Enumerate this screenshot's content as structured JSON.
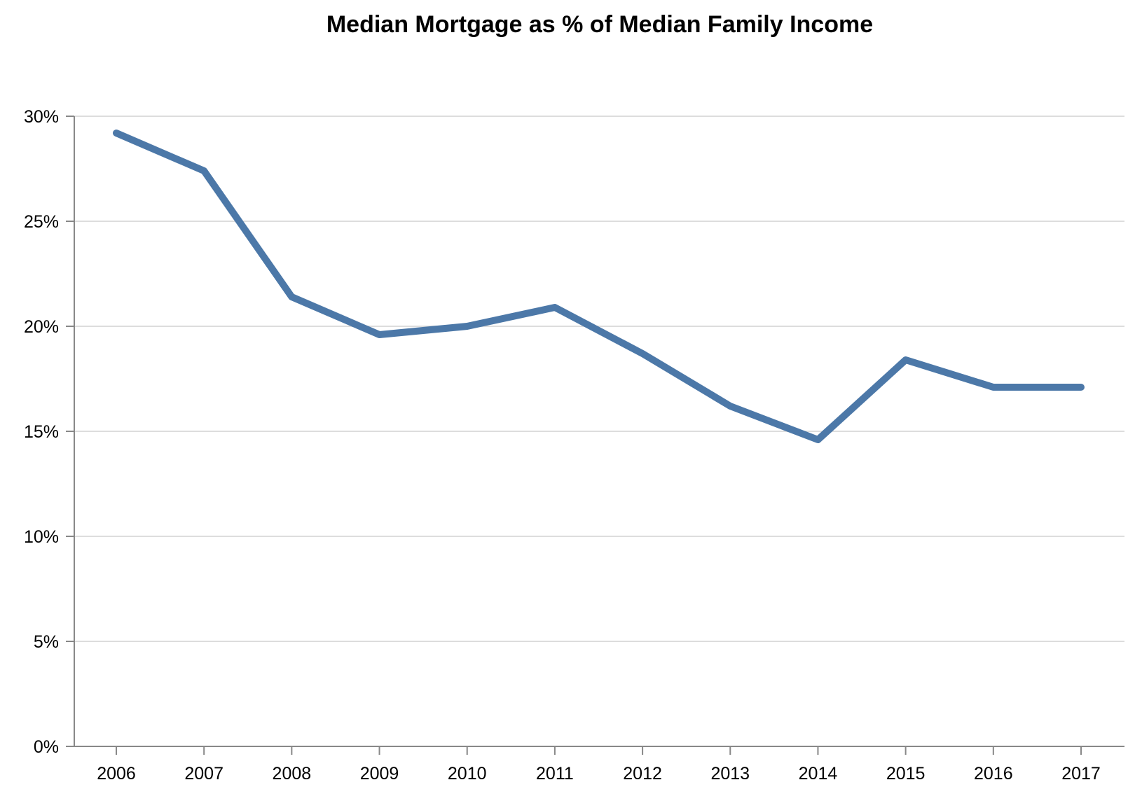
{
  "chart_data": {
    "type": "line",
    "title": "Median Mortgage as % of Median Family Income",
    "xlabel": "",
    "ylabel": "",
    "x": [
      "2006",
      "2007",
      "2008",
      "2009",
      "2010",
      "2011",
      "2012",
      "2013",
      "2014",
      "2015",
      "2016",
      "2017"
    ],
    "series": [
      {
        "values": [
          29.2,
          27.4,
          21.4,
          19.6,
          20.0,
          20.9,
          18.7,
          16.2,
          14.6,
          18.4,
          17.1,
          17.1
        ]
      }
    ],
    "ylim": [
      0,
      30
    ],
    "y_ticks": [
      {
        "value": 0,
        "label": "0%"
      },
      {
        "value": 5,
        "label": "5%"
      },
      {
        "value": 10,
        "label": "10%"
      },
      {
        "value": 15,
        "label": "15%"
      },
      {
        "value": 20,
        "label": "20%"
      },
      {
        "value": 25,
        "label": "25%"
      },
      {
        "value": 30,
        "label": "30%"
      }
    ],
    "grid": true,
    "legend": "none",
    "colors": {
      "line": "#4c78a8",
      "grid": "#dddddd",
      "axis": "#888888"
    }
  }
}
